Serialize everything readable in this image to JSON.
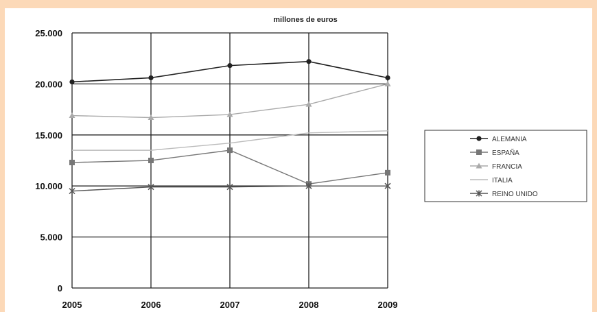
{
  "chart_data": {
    "type": "line",
    "unit_label": "millones de euros",
    "x": [
      "2005",
      "2006",
      "2007",
      "2008",
      "2009"
    ],
    "ylim": [
      0,
      25000
    ],
    "y_ticks": [
      "0",
      "5.000",
      "10.000",
      "15.000",
      "20.000",
      "25.000"
    ],
    "y_tick_values": [
      0,
      5000,
      10000,
      15000,
      20000,
      25000
    ],
    "grid": true,
    "legend_position": "right",
    "series": [
      {
        "name": "ALEMANIA",
        "values": [
          20200,
          20600,
          21800,
          22200,
          20600
        ],
        "color": "#222222",
        "marker": "diamond"
      },
      {
        "name": "ESPAÑA",
        "values": [
          12300,
          12500,
          13500,
          10200,
          11300
        ],
        "color": "#777777",
        "marker": "square"
      },
      {
        "name": "FRANCIA",
        "values": [
          16900,
          16700,
          17000,
          18000,
          20000
        ],
        "color": "#aaaaaa",
        "marker": "triangle"
      },
      {
        "name": "ITALIA",
        "values": [
          13500,
          13500,
          14200,
          15200,
          15400
        ],
        "color": "#bbbbbb",
        "marker": "none"
      },
      {
        "name": "REINO UNIDO",
        "values": [
          9500,
          9900,
          9900,
          10000,
          10000
        ],
        "color": "#555555",
        "marker": "star"
      }
    ]
  }
}
